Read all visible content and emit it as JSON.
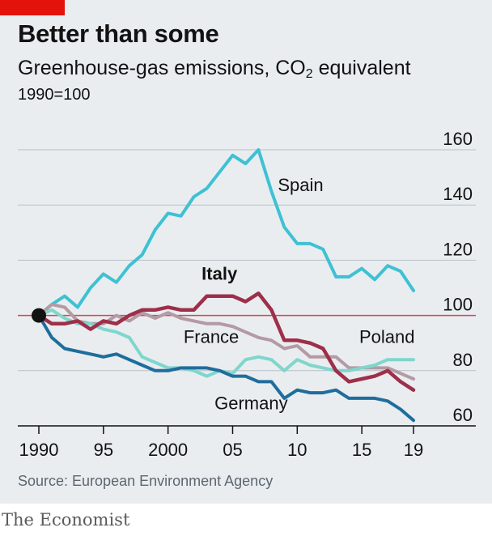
{
  "header": {
    "title": "Better than some",
    "subtitle_main": "Greenhouse-gas emissions, CO",
    "subtitle_sub": "2",
    "subtitle_tail": " equivalent",
    "unit": "1990=100"
  },
  "source": "Source: European Environment Agency",
  "brand": "The Economist",
  "colors": {
    "accent_red": "#e3120b",
    "spain": "#3ec1d3",
    "italy": "#9e2f4a",
    "france": "#b49aa4",
    "poland": "#7fd6cc",
    "germany": "#1f6d9c",
    "grid": "#b7c1c8",
    "reference": "#db444b"
  },
  "chart_data": {
    "type": "line",
    "title": "Better than some",
    "subtitle": "Greenhouse-gas emissions, CO2 equivalent",
    "ylabel": "1990=100",
    "xlim": [
      1990,
      2019
    ],
    "ylim": [
      60,
      160
    ],
    "y_ticks": [
      60,
      80,
      100,
      120,
      140,
      160
    ],
    "x_ticks": [
      {
        "value": 1990,
        "label": "1990"
      },
      {
        "value": 1995,
        "label": "95"
      },
      {
        "value": 2000,
        "label": "2000"
      },
      {
        "value": 2005,
        "label": "05"
      },
      {
        "value": 2010,
        "label": "10"
      },
      {
        "value": 2015,
        "label": "15"
      },
      {
        "value": 2019,
        "label": "19"
      }
    ],
    "reference_line": 100,
    "grid": true,
    "x": [
      1990,
      1991,
      1992,
      1993,
      1994,
      1995,
      1996,
      1997,
      1998,
      1999,
      2000,
      2001,
      2002,
      2003,
      2004,
      2005,
      2006,
      2007,
      2008,
      2009,
      2010,
      2011,
      2012,
      2013,
      2014,
      2015,
      2016,
      2017,
      2018,
      2019
    ],
    "series": [
      {
        "name": "Spain",
        "key": "spain",
        "values": [
          100,
          104,
          107,
          103,
          110,
          115,
          112,
          118,
          122,
          131,
          137,
          136,
          143,
          146,
          152,
          158,
          155,
          160,
          145,
          132,
          126,
          126,
          124,
          114,
          114,
          117,
          113,
          118,
          116,
          109
        ]
      },
      {
        "name": "France",
        "key": "france",
        "values": [
          100,
          104,
          103,
          98,
          97,
          97,
          100,
          98,
          101,
          99,
          101,
          99,
          98,
          97,
          97,
          96,
          94,
          92,
          91,
          88,
          89,
          85,
          85,
          85,
          81,
          81,
          81,
          81,
          79,
          77
        ]
      },
      {
        "name": "Poland",
        "key": "poland",
        "values": [
          100,
          102,
          99,
          97,
          97,
          95,
          94,
          92,
          85,
          83,
          81,
          81,
          80,
          78,
          80,
          79,
          84,
          85,
          84,
          80,
          84,
          82,
          81,
          80,
          80,
          81,
          82,
          84,
          84,
          84
        ]
      },
      {
        "name": "Italy",
        "key": "italy",
        "values": [
          100,
          97,
          97,
          98,
          95,
          98,
          97,
          100,
          102,
          102,
          103,
          102,
          102,
          107,
          107,
          107,
          105,
          108,
          102,
          91,
          91,
          90,
          88,
          80,
          76,
          77,
          78,
          80,
          76,
          73
        ]
      },
      {
        "name": "Germany",
        "key": "germany",
        "values": [
          100,
          92,
          88,
          87,
          86,
          85,
          86,
          84,
          82,
          80,
          80,
          81,
          81,
          81,
          80,
          78,
          78,
          76,
          76,
          70,
          73,
          72,
          72,
          73,
          70,
          70,
          70,
          69,
          66,
          62
        ]
      }
    ],
    "labels": [
      {
        "key": "spain",
        "text": "Spain",
        "x": 2008.5,
        "y": 145
      },
      {
        "key": "italy",
        "text": "Italy",
        "x": 2002.6,
        "y": 113
      },
      {
        "key": "france",
        "text": "France",
        "x": 2001.2,
        "y": 90
      },
      {
        "key": "poland",
        "text": "Poland",
        "x": 2014.8,
        "y": 90
      },
      {
        "key": "germany",
        "text": "Germany",
        "x": 2003.6,
        "y": 66
      }
    ]
  }
}
